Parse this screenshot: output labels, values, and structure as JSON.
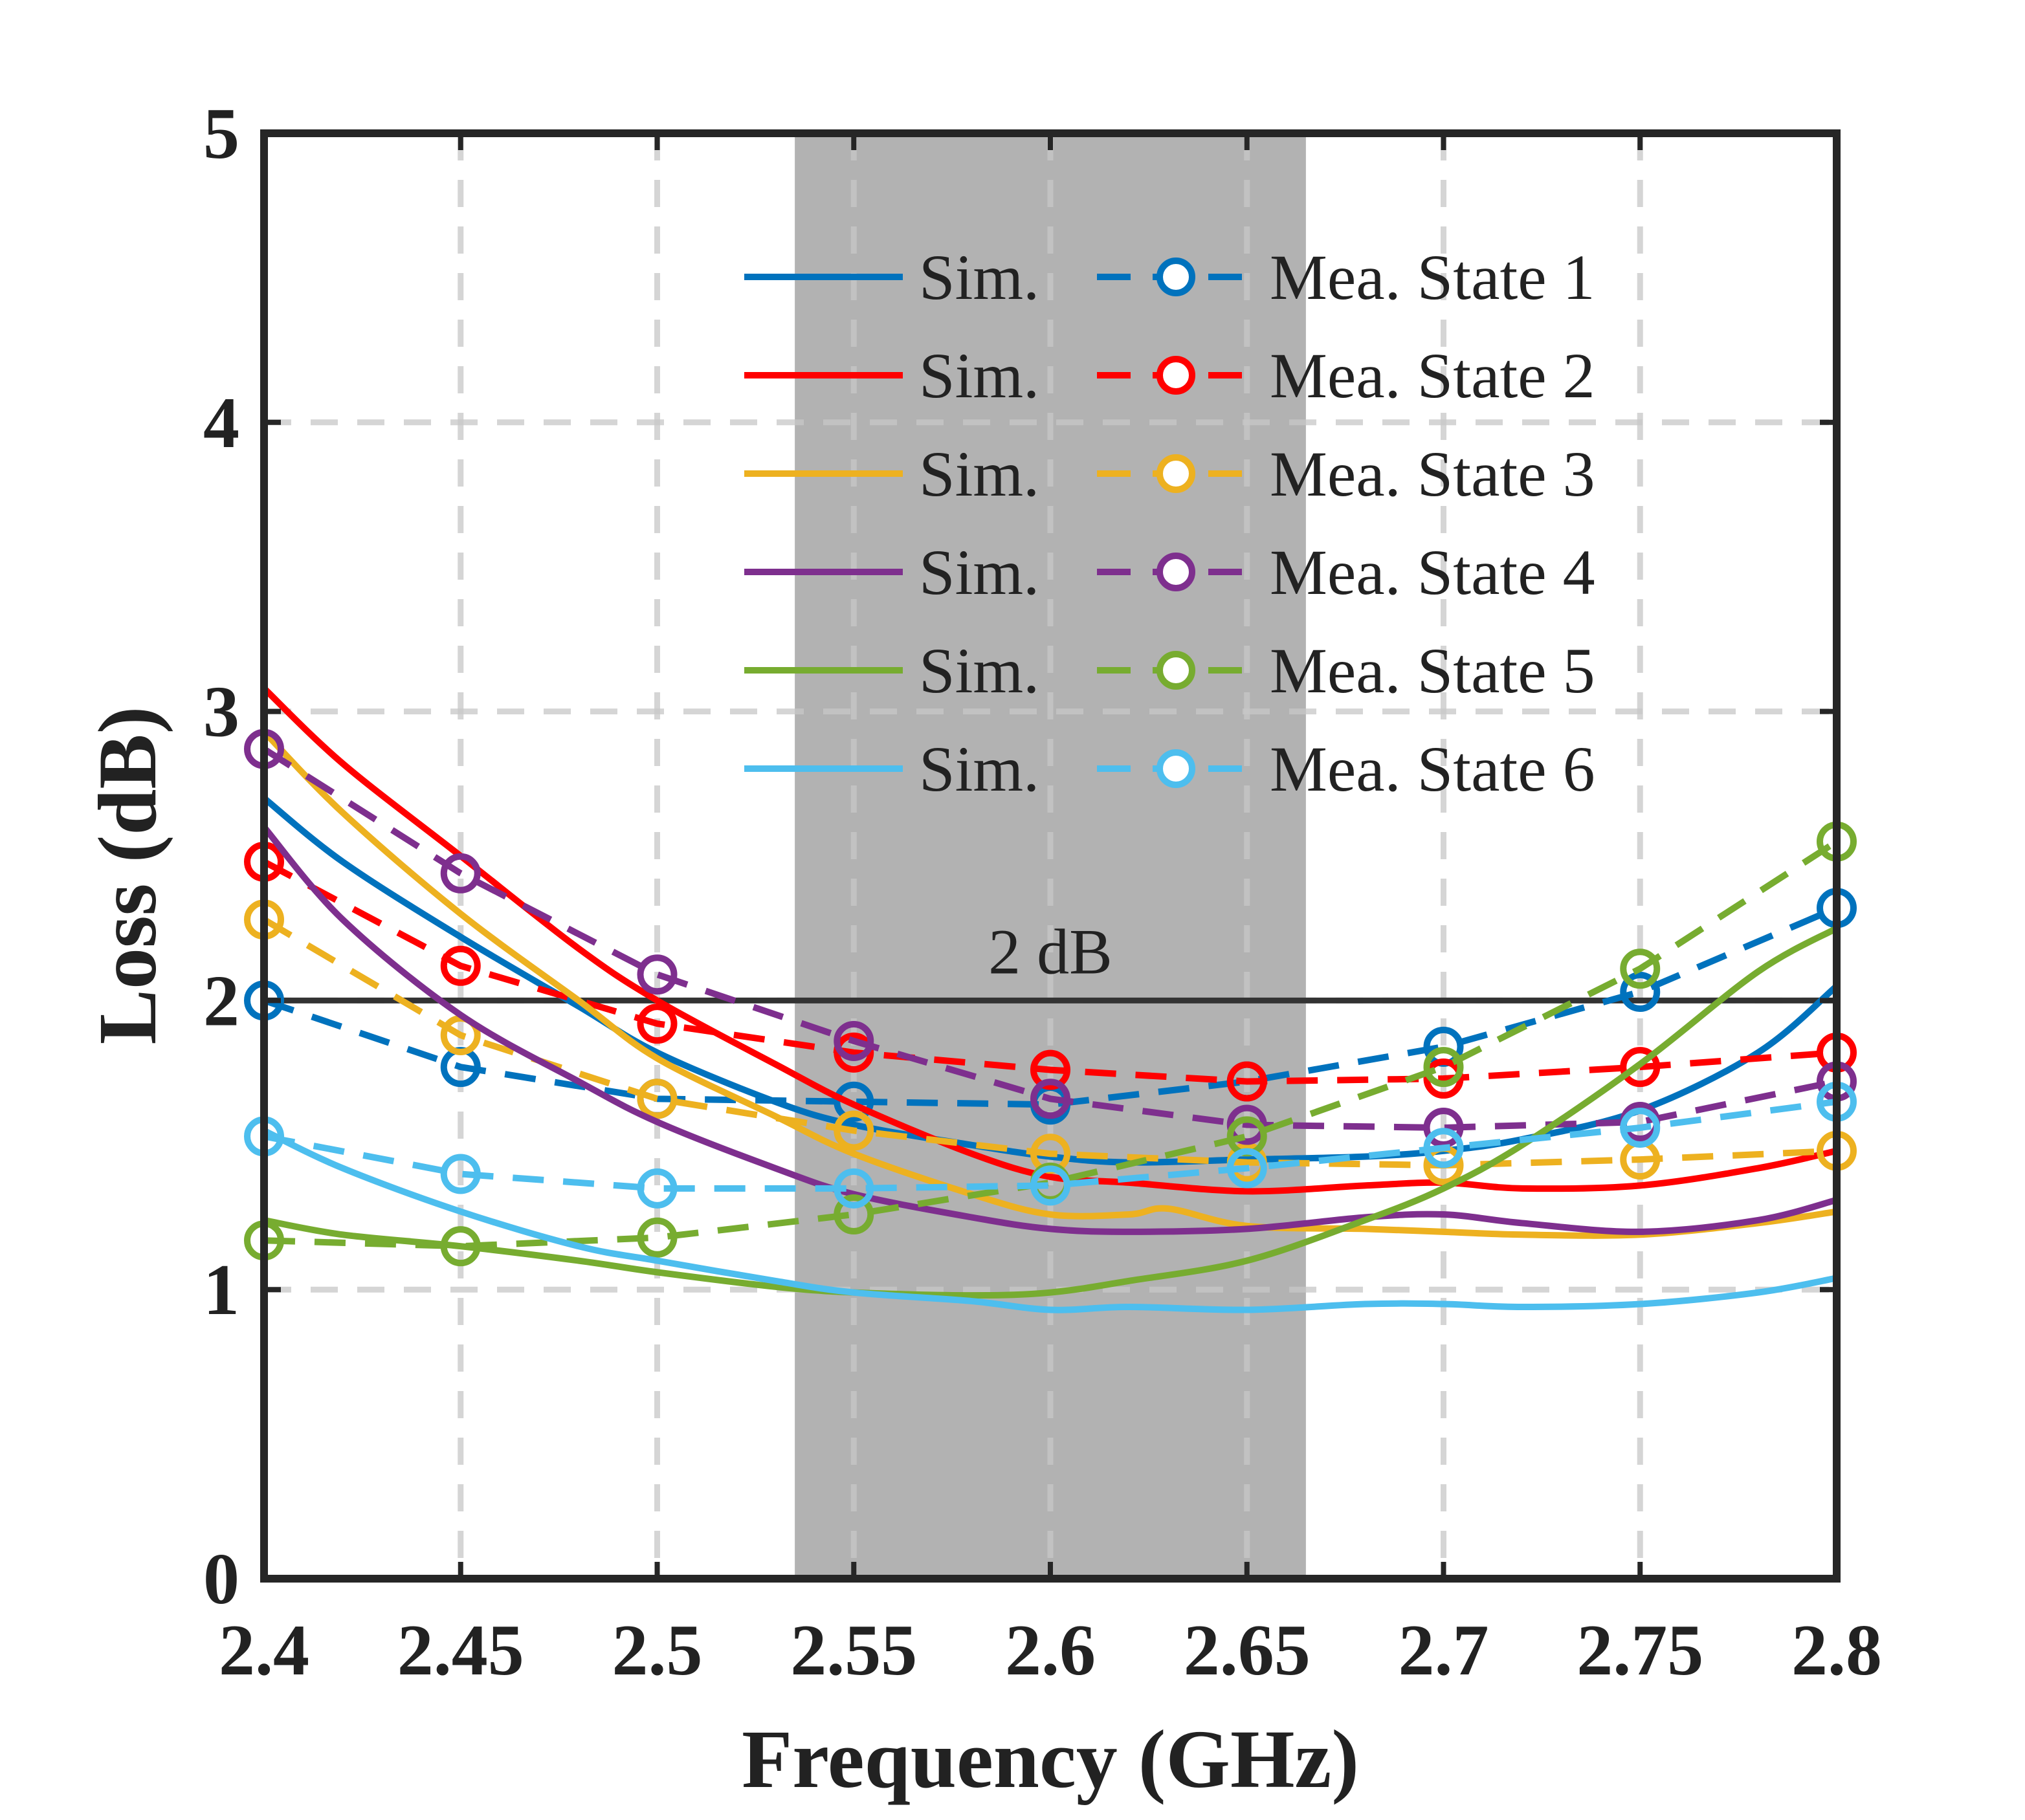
{
  "chart_data": {
    "type": "line",
    "title": "",
    "xlabel": "Frequency (GHz)",
    "ylabel": "Loss (dB)",
    "xlim": [
      2.4,
      2.8
    ],
    "ylim": [
      0,
      5
    ],
    "xticks": [
      2.4,
      2.45,
      2.5,
      2.55,
      2.6,
      2.65,
      2.7,
      2.75,
      2.8
    ],
    "xtick_labels": [
      "2.4",
      "2.45",
      "2.5",
      "2.55",
      "2.6",
      "2.65",
      "2.7",
      "2.75",
      "2.8"
    ],
    "yticks": [
      0,
      1,
      2,
      3,
      4,
      5
    ],
    "ytick_labels": [
      "0",
      "1",
      "2",
      "3",
      "4",
      "5"
    ],
    "grid": true,
    "legend_location": "top-right",
    "shaded_band": {
      "x_start": 2.535,
      "x_end": 2.665,
      "color": "#b2b2b2"
    },
    "reference_line": {
      "y": 2,
      "label": "2 dB",
      "color": "#333333"
    },
    "sim_label": "Sim.",
    "series": [
      {
        "name": "Mea. State 1",
        "color": "#0072bd",
        "sim_x": [
          2.4,
          2.42,
          2.45,
          2.48,
          2.5,
          2.53,
          2.55,
          2.58,
          2.6,
          2.62,
          2.65,
          2.68,
          2.7,
          2.72,
          2.75,
          2.78,
          2.8
        ],
        "sim_y": [
          2.7,
          2.48,
          2.22,
          1.98,
          1.82,
          1.65,
          1.57,
          1.5,
          1.46,
          1.44,
          1.45,
          1.46,
          1.48,
          1.52,
          1.62,
          1.82,
          2.05
        ],
        "mea_x": [
          2.4,
          2.45,
          2.5,
          2.55,
          2.6,
          2.65,
          2.7,
          2.75,
          2.8
        ],
        "mea_y": [
          2.0,
          1.77,
          1.66,
          1.65,
          1.64,
          1.72,
          1.84,
          2.03,
          2.32
        ]
      },
      {
        "name": "Mea. State 2",
        "color": "#ff0000",
        "sim_x": [
          2.4,
          2.42,
          2.45,
          2.48,
          2.5,
          2.53,
          2.55,
          2.58,
          2.6,
          2.62,
          2.65,
          2.68,
          2.7,
          2.72,
          2.75,
          2.78,
          2.8
        ],
        "sim_y": [
          3.08,
          2.82,
          2.5,
          2.18,
          2.0,
          1.78,
          1.64,
          1.47,
          1.39,
          1.37,
          1.34,
          1.36,
          1.37,
          1.35,
          1.36,
          1.42,
          1.48
        ],
        "mea_x": [
          2.4,
          2.45,
          2.5,
          2.55,
          2.6,
          2.65,
          2.7,
          2.75,
          2.8
        ],
        "mea_y": [
          2.48,
          2.12,
          1.92,
          1.82,
          1.76,
          1.72,
          1.73,
          1.77,
          1.82
        ]
      },
      {
        "name": "Mea. State 3",
        "color": "#edb120",
        "sim_x": [
          2.4,
          2.42,
          2.45,
          2.48,
          2.5,
          2.53,
          2.55,
          2.58,
          2.6,
          2.62,
          2.63,
          2.65,
          2.68,
          2.7,
          2.72,
          2.75,
          2.78,
          2.8
        ],
        "sim_y": [
          2.93,
          2.65,
          2.3,
          2.0,
          1.8,
          1.6,
          1.47,
          1.33,
          1.26,
          1.26,
          1.28,
          1.22,
          1.21,
          1.2,
          1.19,
          1.19,
          1.23,
          1.27
        ],
        "mea_x": [
          2.4,
          2.45,
          2.5,
          2.55,
          2.6,
          2.65,
          2.7,
          2.75,
          2.8
        ],
        "mea_y": [
          2.28,
          1.88,
          1.66,
          1.55,
          1.47,
          1.44,
          1.43,
          1.45,
          1.48
        ]
      },
      {
        "name": "Mea. State 4",
        "color": "#7e2f8e",
        "sim_x": [
          2.4,
          2.42,
          2.45,
          2.48,
          2.5,
          2.53,
          2.55,
          2.58,
          2.6,
          2.62,
          2.65,
          2.68,
          2.7,
          2.72,
          2.75,
          2.78,
          2.8
        ],
        "sim_y": [
          2.6,
          2.28,
          1.95,
          1.72,
          1.58,
          1.42,
          1.33,
          1.25,
          1.21,
          1.2,
          1.21,
          1.25,
          1.26,
          1.23,
          1.2,
          1.24,
          1.31
        ],
        "mea_x": [
          2.4,
          2.45,
          2.5,
          2.55,
          2.6,
          2.65,
          2.7,
          2.75,
          2.8
        ],
        "mea_y": [
          2.87,
          2.44,
          2.09,
          1.86,
          1.66,
          1.57,
          1.56,
          1.58,
          1.72
        ]
      },
      {
        "name": "Mea. State 5",
        "color": "#77ac30",
        "sim_x": [
          2.4,
          2.42,
          2.45,
          2.48,
          2.5,
          2.53,
          2.55,
          2.58,
          2.6,
          2.62,
          2.65,
          2.68,
          2.7,
          2.72,
          2.75,
          2.78,
          2.8
        ],
        "sim_y": [
          1.24,
          1.19,
          1.15,
          1.1,
          1.06,
          1.01,
          0.99,
          0.98,
          0.99,
          1.03,
          1.1,
          1.24,
          1.35,
          1.5,
          1.78,
          2.1,
          2.25
        ],
        "mea_x": [
          2.4,
          2.45,
          2.5,
          2.55,
          2.6,
          2.65,
          2.7,
          2.75,
          2.8
        ],
        "mea_y": [
          1.17,
          1.15,
          1.18,
          1.26,
          1.37,
          1.53,
          1.77,
          2.11,
          2.55
        ]
      },
      {
        "name": "Mea. State 6",
        "color": "#4dbeee",
        "sim_x": [
          2.4,
          2.42,
          2.45,
          2.48,
          2.5,
          2.53,
          2.55,
          2.58,
          2.6,
          2.62,
          2.65,
          2.68,
          2.7,
          2.72,
          2.75,
          2.78,
          2.8
        ],
        "sim_y": [
          1.55,
          1.42,
          1.27,
          1.15,
          1.1,
          1.03,
          0.99,
          0.96,
          0.93,
          0.94,
          0.93,
          0.95,
          0.95,
          0.94,
          0.95,
          0.99,
          1.04
        ],
        "mea_x": [
          2.4,
          2.45,
          2.5,
          2.55,
          2.6,
          2.65,
          2.7,
          2.75,
          2.8
        ],
        "mea_y": [
          1.53,
          1.4,
          1.35,
          1.35,
          1.36,
          1.42,
          1.49,
          1.56,
          1.65
        ]
      }
    ]
  }
}
